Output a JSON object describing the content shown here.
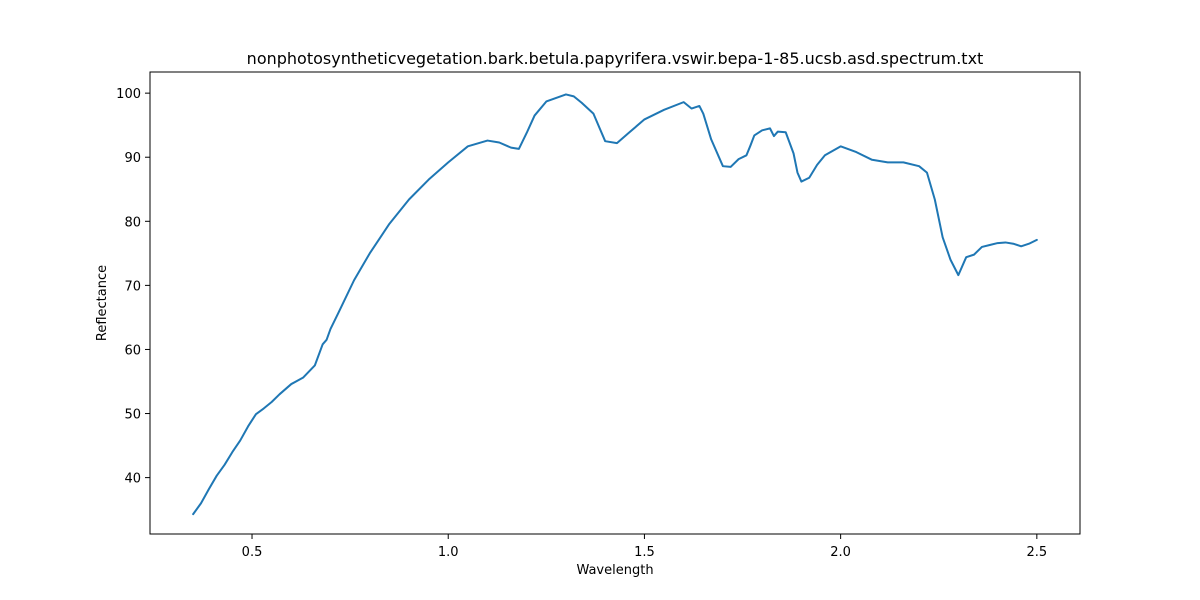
{
  "chart_data": {
    "type": "line",
    "title": "nonphotosyntheticvegetation.bark.betula.papyrifera.vswir.bepa-1-85.ucsb.asd.spectrum.txt",
    "xlabel": "Wavelength",
    "ylabel": "Reflectance",
    "xlim": [
      0.24,
      2.61
    ],
    "ylim": [
      31.2,
      103.3
    ],
    "xticks": [
      0.5,
      1.0,
      1.5,
      2.0,
      2.5
    ],
    "xtick_labels": [
      "0.5",
      "1.0",
      "1.5",
      "2.0",
      "2.5"
    ],
    "yticks": [
      40,
      50,
      60,
      70,
      80,
      90,
      100
    ],
    "ytick_labels": [
      "40",
      "50",
      "60",
      "70",
      "80",
      "90",
      "100"
    ],
    "grid": false,
    "line_color": "#1f77b4",
    "series": [
      {
        "x": [
          0.35,
          0.37,
          0.39,
          0.41,
          0.43,
          0.45,
          0.47,
          0.49,
          0.51,
          0.53,
          0.55,
          0.57,
          0.6,
          0.63,
          0.66,
          0.68,
          0.69,
          0.7,
          0.72,
          0.76,
          0.8,
          0.85,
          0.9,
          0.95,
          1.0,
          1.05,
          1.1,
          1.13,
          1.16,
          1.18,
          1.2,
          1.22,
          1.25,
          1.3,
          1.32,
          1.34,
          1.37,
          1.4,
          1.43,
          1.46,
          1.5,
          1.55,
          1.6,
          1.62,
          1.64,
          1.65,
          1.67,
          1.7,
          1.72,
          1.74,
          1.76,
          1.77,
          1.78,
          1.8,
          1.82,
          1.83,
          1.84,
          1.86,
          1.88,
          1.89,
          1.9,
          1.92,
          1.94,
          1.96,
          2.0,
          2.04,
          2.08,
          2.12,
          2.16,
          2.2,
          2.22,
          2.24,
          2.26,
          2.28,
          2.3,
          2.32,
          2.34,
          2.36,
          2.38,
          2.4,
          2.42,
          2.44,
          2.46,
          2.48,
          2.5
        ],
        "y": [
          34.3,
          36.0,
          38.2,
          40.3,
          42.0,
          44.0,
          45.8,
          48.0,
          49.9,
          50.8,
          51.8,
          53.0,
          54.6,
          55.6,
          57.5,
          60.8,
          61.5,
          63.2,
          65.7,
          70.8,
          75.0,
          79.6,
          83.4,
          86.5,
          89.2,
          91.7,
          92.6,
          92.3,
          91.5,
          91.3,
          93.8,
          96.5,
          98.7,
          99.8,
          99.5,
          98.5,
          96.8,
          92.5,
          92.2,
          93.8,
          95.9,
          97.4,
          98.6,
          97.6,
          98.0,
          96.8,
          92.8,
          88.6,
          88.5,
          89.7,
          90.3,
          91.8,
          93.4,
          94.2,
          94.5,
          93.3,
          94.0,
          93.9,
          90.6,
          87.6,
          86.2,
          86.8,
          88.8,
          90.3,
          91.7,
          90.8,
          89.6,
          89.2,
          89.2,
          88.6,
          87.6,
          83.4,
          77.5,
          74.0,
          71.6,
          74.4,
          74.8,
          76.0,
          76.3,
          76.6,
          76.7,
          76.5,
          76.1,
          76.5,
          77.1
        ]
      }
    ]
  }
}
